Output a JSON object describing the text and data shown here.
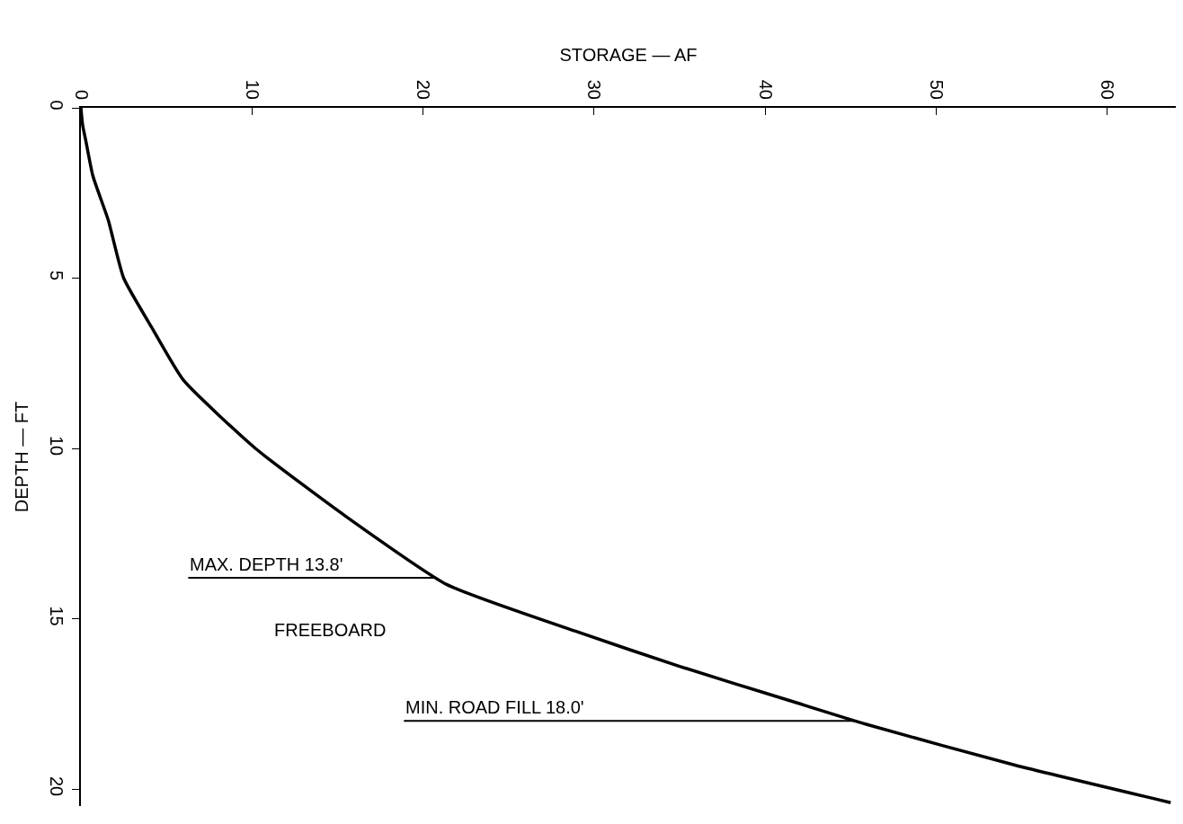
{
  "chart_data": {
    "type": "line",
    "xlabel": "STORAGE — AF",
    "ylabel": "DEPTH — FT",
    "x": [
      0,
      0.1,
      0.3,
      0.7,
      1.6,
      2.5,
      4.2,
      6.0,
      10.2,
      15.5,
      21.4,
      29.1,
      35,
      41.4,
      45.9,
      54.6,
      63.7
    ],
    "series": [
      {
        "color": "#000000",
        "values": [
          0,
          0.5,
          1,
          2,
          3.3,
          5,
          6.5,
          8,
          10,
          12,
          14,
          15.4,
          16.4,
          17.4,
          18.1,
          19.3,
          20.4
        ]
      }
    ],
    "xlim": [
      0,
      64
    ],
    "xticks": [
      0,
      10,
      20,
      30,
      40,
      50,
      60
    ],
    "ylim": [
      20.5,
      0
    ],
    "yticks": [
      0,
      5,
      10,
      15,
      20
    ],
    "ref_lines": [
      {
        "axis": "y",
        "value": 13.8,
        "label": "MAX. DEPTH 13.8'",
        "color": "#000000"
      },
      {
        "axis": "y",
        "value": 18.0,
        "label": "MIN. ROAD FILL 18.0'",
        "color": "#000000"
      }
    ],
    "annotations": [
      "FREEBOARD"
    ],
    "marker": "none",
    "line_style": "solid"
  }
}
